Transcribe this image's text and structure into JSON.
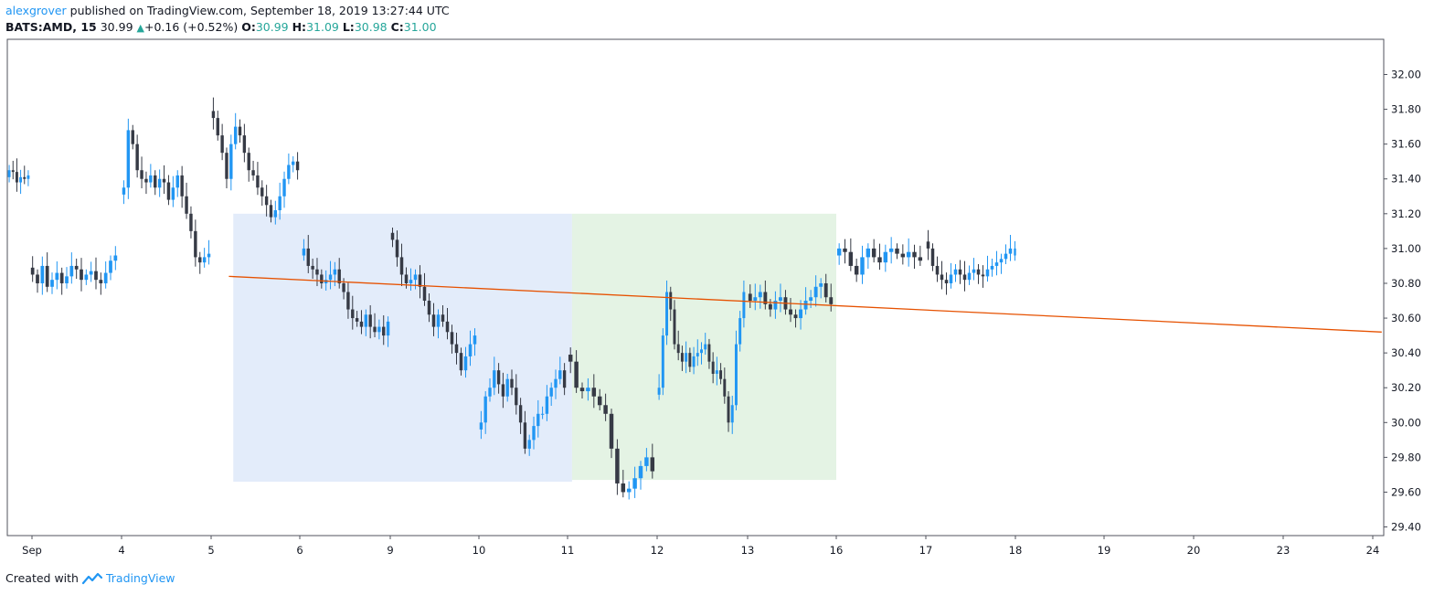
{
  "header": {
    "author": "alexgrover",
    "published_text": "published on TradingView.com, September 18, 2019 13:27:44 UTC",
    "symbol": "BATS:AMD, 15",
    "last": "30.99",
    "change": "+0.16 (+0.52%)",
    "open_label": "O:",
    "open": "30.99",
    "high_label": "H:",
    "high": "31.09",
    "low_label": "L:",
    "low": "30.98",
    "close_label": "C:",
    "close": "31.00"
  },
  "footer": {
    "created_with": "Created with",
    "brand": "TradingView"
  },
  "colors": {
    "up": "#2196f3",
    "down": "#363a45",
    "trendline": "#e65100",
    "zone_a": "#e3ecfa",
    "zone_b": "#e4f3e4",
    "axis": "#50535e",
    "header_green": "#26a69a"
  },
  "chart_data": {
    "type": "candlestick",
    "title": "BATS:AMD, 15",
    "ylim": [
      29.3,
      32.2
    ],
    "y_ticks": [
      "32.00",
      "31.80",
      "31.60",
      "31.40",
      "31.20",
      "31.00",
      "30.80",
      "30.60",
      "30.40",
      "30.20",
      "30.00",
      "29.80",
      "29.60",
      "29.40"
    ],
    "x_ticks": [
      "Sep",
      "4",
      "5",
      "6",
      "9",
      "10",
      "11",
      "12",
      "13",
      "16",
      "17",
      "18",
      "19",
      "20",
      "23",
      "24"
    ],
    "sessions_shown": 13,
    "session_prices": [
      [
        31.45,
        31.44,
        31.38,
        31.41,
        31.4,
        31.42
      ],
      [
        30.85,
        30.8,
        30.9,
        30.78,
        30.82,
        30.86,
        30.8,
        30.84,
        30.9,
        30.88,
        30.82,
        30.85,
        30.87,
        30.82,
        30.8,
        30.86,
        30.93,
        30.96
      ],
      [
        31.35,
        31.68,
        31.6,
        31.45,
        31.4,
        31.38,
        31.42,
        31.35,
        31.4,
        31.38,
        31.28,
        31.35,
        31.42,
        31.3,
        31.2,
        31.1,
        30.95,
        30.92,
        30.95,
        30.97
      ],
      [
        31.75,
        31.65,
        31.55,
        31.4,
        31.6,
        31.7,
        31.65,
        31.55,
        31.45,
        31.42,
        31.35,
        31.3,
        31.25,
        31.18,
        31.22,
        31.3,
        31.4,
        31.48,
        31.5,
        31.45
      ],
      [
        31.0,
        30.9,
        30.88,
        30.85,
        30.8,
        30.82,
        30.85,
        30.88,
        30.8,
        30.75,
        30.65,
        30.6,
        30.58,
        30.55,
        30.62,
        30.55,
        30.52,
        30.55,
        30.5,
        30.58
      ],
      [
        31.05,
        30.95,
        30.85,
        30.8,
        30.82,
        30.85,
        30.78,
        30.7,
        30.62,
        30.55,
        30.62,
        30.58,
        30.52,
        30.45,
        30.4,
        30.3,
        30.38,
        30.45,
        30.5
      ],
      [
        30.0,
        30.15,
        30.2,
        30.3,
        30.22,
        30.15,
        30.25,
        30.2,
        30.1,
        30.0,
        29.85,
        29.9,
        29.98,
        30.05,
        30.05,
        30.15,
        30.2,
        30.25,
        30.3,
        30.2
      ],
      [
        30.35,
        30.2,
        30.18,
        30.2,
        30.15,
        30.1,
        30.05,
        29.85,
        29.65,
        29.6,
        29.62,
        29.68,
        29.75,
        29.8,
        29.72
      ],
      [
        30.2,
        30.5,
        30.75,
        30.65,
        30.45,
        30.4,
        30.35,
        30.4,
        30.32,
        30.38,
        30.4,
        30.42,
        30.45,
        30.35,
        30.28,
        30.3,
        30.25,
        30.15,
        30.0,
        30.1,
        30.45,
        30.6,
        30.75
      ],
      [
        30.7,
        30.72,
        30.75,
        30.68,
        30.65,
        30.7,
        30.72,
        30.65,
        30.62,
        30.6,
        30.65,
        30.7,
        30.72,
        30.78,
        30.8,
        30.72,
        30.68
      ],
      [
        31.0,
        30.98,
        30.9,
        30.85,
        30.95,
        31.0,
        30.95,
        30.92,
        30.98,
        31.0,
        30.97,
        30.95,
        30.98,
        30.95,
        30.93
      ],
      [
        31.0,
        30.9,
        30.85,
        30.82,
        30.8,
        30.85,
        30.88,
        30.85,
        30.82,
        30.86,
        30.88,
        30.85,
        30.84,
        30.88,
        30.9,
        30.92,
        30.94,
        30.97,
        31.0
      ],
      [
        31.0
      ]
    ],
    "zones": [
      {
        "name": "range-zone-a",
        "x_start": 2.25,
        "x_end": 6.05,
        "y_low": 29.66,
        "y_high": 31.2
      },
      {
        "name": "range-zone-b",
        "x_start": 6.05,
        "x_end": 9.0,
        "y_low": 29.67,
        "y_high": 31.2
      }
    ],
    "trendline": {
      "x_start": 2.2,
      "y_start": 30.84,
      "x_end": 15.1,
      "y_end": 30.52
    }
  }
}
